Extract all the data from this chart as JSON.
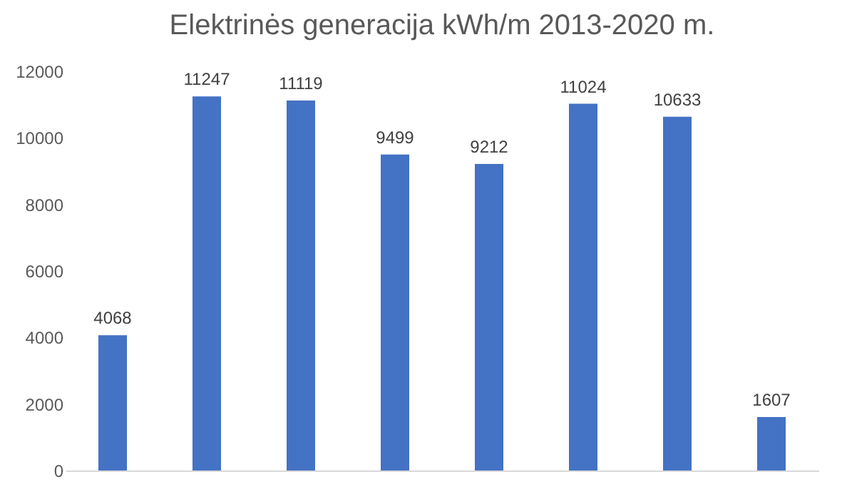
{
  "chart_data": {
    "type": "bar",
    "title": "Elektrinės generacija kWh/m 2013-2020 m.",
    "categories": [
      null,
      null,
      null,
      null,
      null,
      null,
      null,
      null
    ],
    "values": [
      4068,
      11247,
      11119,
      9499,
      9212,
      11024,
      10633,
      1607
    ],
    "color": "#4472c4",
    "ylim": [
      0,
      12000
    ],
    "yticks": [
      0,
      2000,
      4000,
      6000,
      8000,
      10000,
      12000
    ],
    "data_labels": true,
    "grid": false,
    "tick_labels": "y"
  }
}
